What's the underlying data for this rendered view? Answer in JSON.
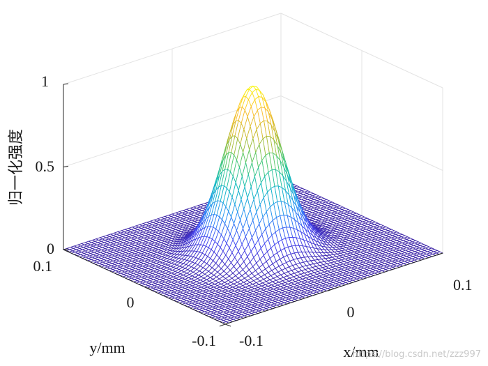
{
  "chart_data": {
    "type": "surface",
    "function": "exp(-(x^2 + y^2) / w^2), w = 0.03",
    "x_range": [
      -0.1,
      0.1
    ],
    "y_range": [
      -0.1,
      0.1
    ],
    "z_range": [
      0,
      1
    ],
    "grid_points": 61,
    "peak": {
      "x": 0,
      "y": 0,
      "z": 1
    },
    "xlabel": "x/mm",
    "ylabel": "y/mm",
    "zlabel": "归一化强度",
    "x_ticks": [
      "-0.1",
      "0",
      "0.1"
    ],
    "y_ticks": [
      "-0.1",
      "0",
      "0.1"
    ],
    "z_ticks": [
      "0",
      "0.5",
      "1"
    ],
    "colormap": [
      "#3e26a8",
      "#4646f1",
      "#2a92f6",
      "#12bcc1",
      "#4ccb73",
      "#c6bb2e",
      "#fec034",
      "#f9fb0e"
    ],
    "grid": true
  },
  "watermark": "https://blog.csdn.net/zzz997"
}
